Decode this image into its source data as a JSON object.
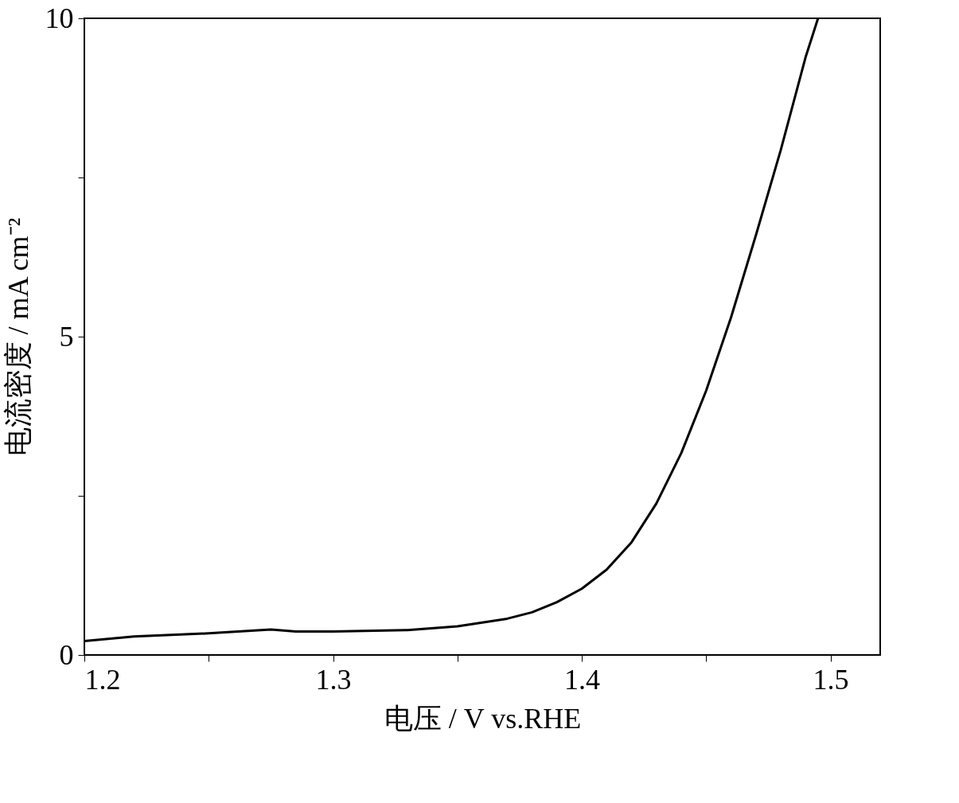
{
  "chart_data": {
    "type": "line",
    "xlabel": "电压 / V vs.RHE",
    "ylabel": "电流密度 / mA cm⁻²",
    "x": [
      1.2,
      1.22,
      1.25,
      1.275,
      1.285,
      1.3,
      1.33,
      1.35,
      1.37,
      1.38,
      1.39,
      1.4,
      1.41,
      1.42,
      1.43,
      1.44,
      1.45,
      1.46,
      1.47,
      1.48,
      1.49,
      1.495
    ],
    "series": [
      {
        "color": "#000000",
        "values": [
          0.22,
          0.29,
          0.34,
          0.4,
          0.37,
          0.37,
          0.39,
          0.45,
          0.57,
          0.67,
          0.83,
          1.04,
          1.34,
          1.77,
          2.38,
          3.17,
          4.15,
          5.3,
          6.59,
          7.93,
          9.39,
          10
        ]
      }
    ],
    "xlim": [
      1.2,
      1.52
    ],
    "ylim": [
      0,
      10
    ],
    "xticks": [
      1.2,
      {
        "value": 1.25,
        "label": null
      },
      1.3,
      {
        "value": 1.35,
        "label": null
      },
      1.4,
      {
        "value": 1.45,
        "label": null
      },
      1.5
    ],
    "yticks": [
      0,
      {
        "value": 2.5,
        "label": null
      },
      5,
      {
        "value": 7.5,
        "label": null
      },
      10
    ],
    "grid": false,
    "marker": "none",
    "line_style": "solid"
  }
}
